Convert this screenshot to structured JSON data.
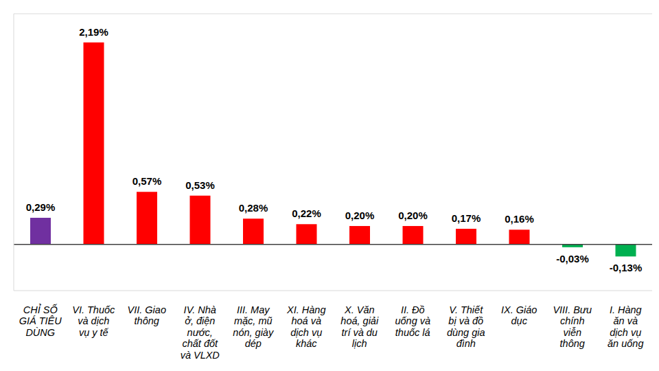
{
  "chart_data": {
    "type": "bar",
    "categories": [
      "CHỈ SỐ GIÁ TIÊU DÙNG",
      "VI. Thuốc và dịch vụ y tế",
      "VII. Giao thông",
      "IV. Nhà ở, điện nước, chất đốt và VLXD",
      "III. May mặc, mũ nón, giày dép",
      "XI. Hàng hoá và dịch vụ khác",
      "X. Văn hoá, giải trí và du lịch",
      "II. Đồ uống và thuốc lá",
      "V. Thiết bị và đồ dùng gia đình",
      "IX. Giáo dục",
      "VIII. Bưu chính viễn thông",
      "I. Hàng ăn và dịch vụ ăn uống"
    ],
    "values": [
      0.29,
      2.19,
      0.57,
      0.53,
      0.28,
      0.22,
      0.2,
      0.2,
      0.17,
      0.16,
      -0.03,
      -0.13
    ],
    "value_labels": [
      "0,29%",
      "2,19%",
      "0,57%",
      "0,53%",
      "0,28%",
      "0,22%",
      "0,20%",
      "0,20%",
      "0,17%",
      "0,16%",
      "-0,03%",
      "-0,13%"
    ],
    "colors": [
      "#7030a0",
      "#ff0000",
      "#ff0000",
      "#ff0000",
      "#ff0000",
      "#ff0000",
      "#ff0000",
      "#ff0000",
      "#ff0000",
      "#ff0000",
      "#00b050",
      "#00b050"
    ],
    "ylim": [
      -0.5,
      2.5
    ],
    "yticks": [
      -0.5,
      0,
      0.5,
      1,
      1.5,
      2,
      2.5
    ],
    "grid": true,
    "data_labels": true,
    "tick_labels": "x"
  }
}
